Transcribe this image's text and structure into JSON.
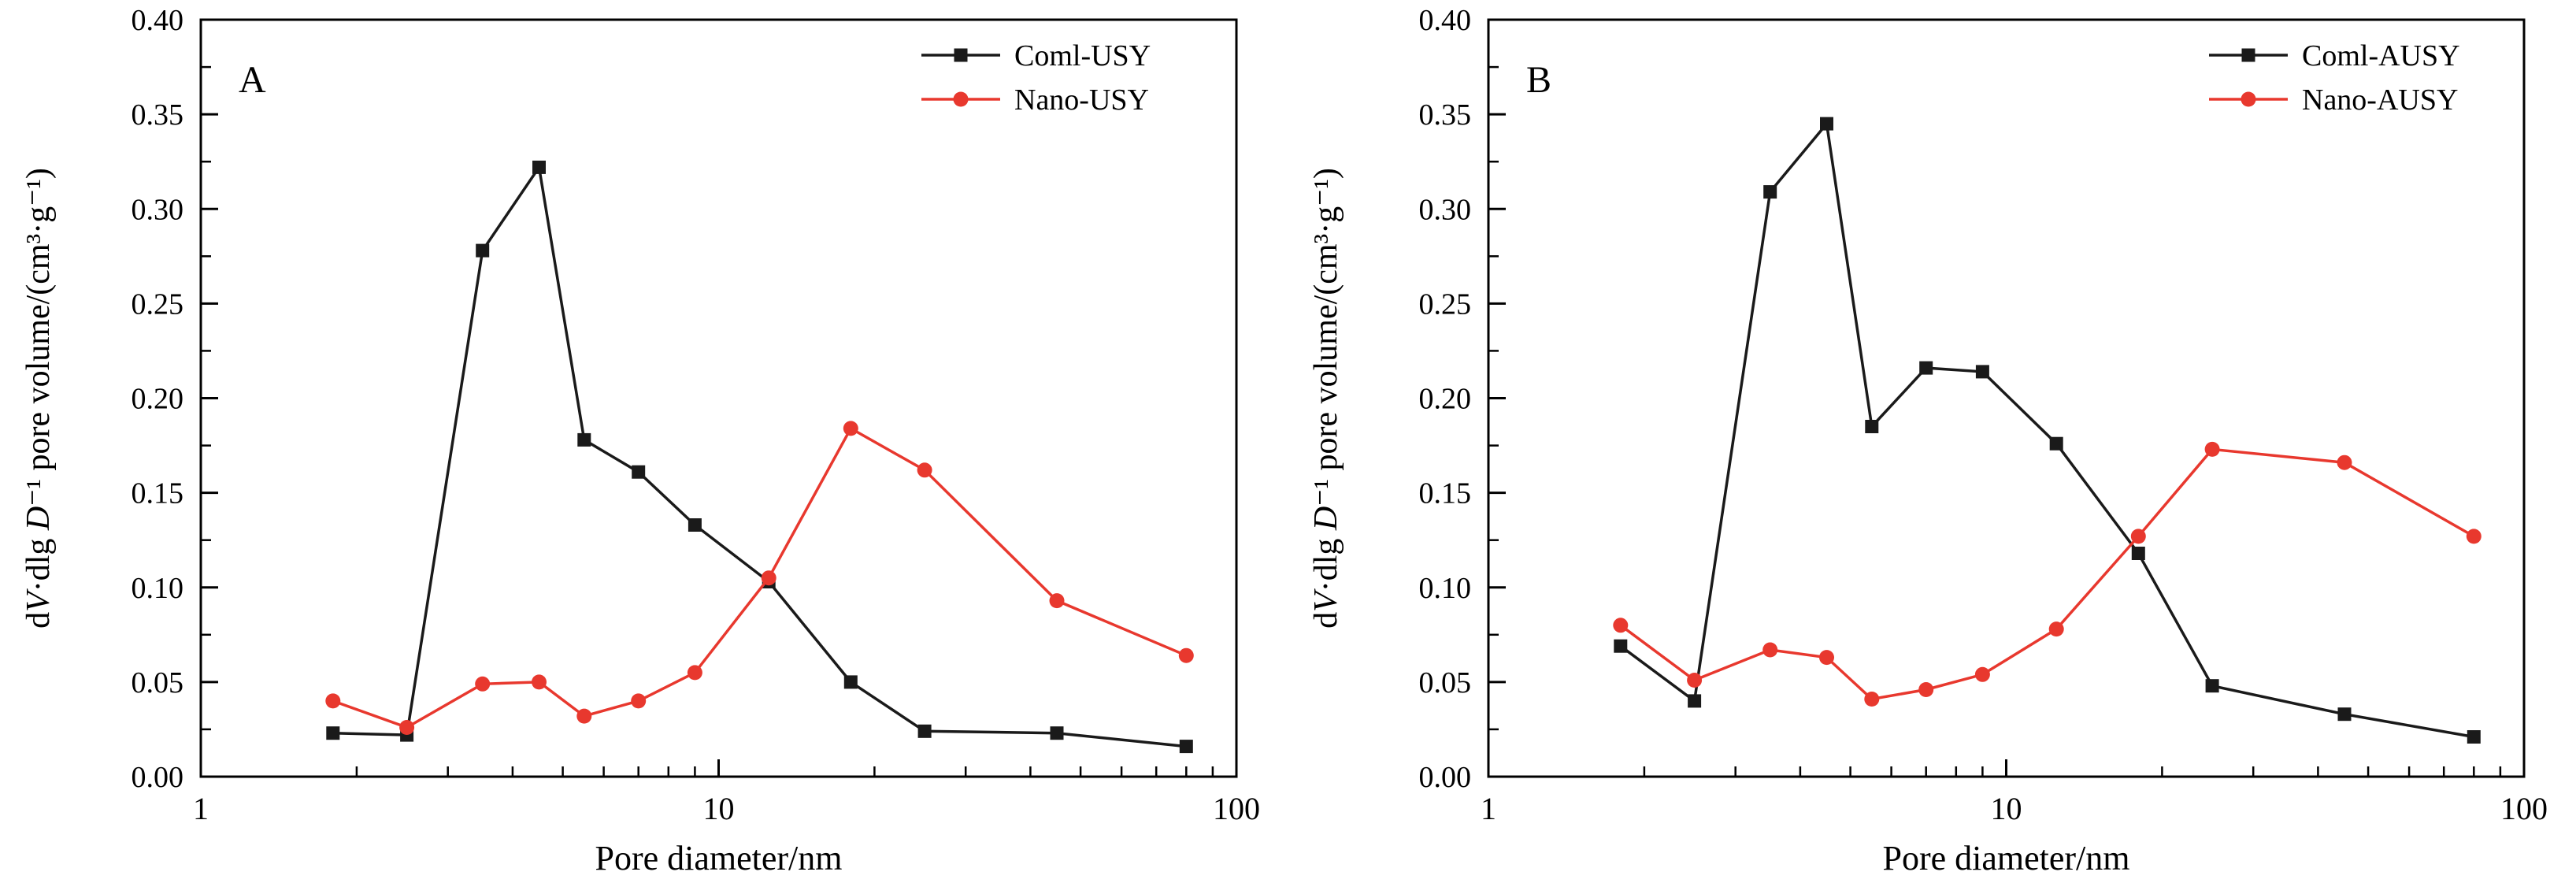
{
  "figure": {
    "background": "#ffffff",
    "text_color": "#000000",
    "frame_color": "#000000"
  },
  "chart_data": [
    {
      "type": "line",
      "panel_label": "A",
      "xlabel": "Pore diameter/nm",
      "ylabel": "dV·dlg D⁻¹ pore volume/(cm³·g⁻¹)",
      "x_scale": "log",
      "xlim": [
        1,
        100
      ],
      "ylim": [
        0.0,
        0.4
      ],
      "y_tick_step": 0.05,
      "x_major_ticks": [
        1,
        10,
        100
      ],
      "grid": false,
      "legend_position": "top-right",
      "x": [
        1.8,
        2.5,
        3.5,
        4.5,
        5.5,
        7,
        9,
        12.5,
        18,
        25,
        45,
        80
      ],
      "series": [
        {
          "name": "Coml-USY",
          "color": "#1a1a1a",
          "marker": "square",
          "values": [
            0.023,
            0.022,
            0.278,
            0.322,
            0.178,
            0.161,
            0.133,
            0.103,
            0.05,
            0.024,
            0.023,
            0.016
          ]
        },
        {
          "name": "Nano-USY",
          "color": "#e8382e",
          "marker": "circle",
          "values": [
            0.04,
            0.026,
            0.049,
            0.05,
            0.032,
            0.04,
            0.055,
            0.105,
            0.184,
            0.162,
            0.093,
            0.064
          ]
        }
      ]
    },
    {
      "type": "line",
      "panel_label": "B",
      "xlabel": "Pore diameter/nm",
      "ylabel": "dV·dlg D⁻¹ pore volume/(cm³·g⁻¹)",
      "x_scale": "log",
      "xlim": [
        1,
        100
      ],
      "ylim": [
        0.0,
        0.4
      ],
      "y_tick_step": 0.05,
      "x_major_ticks": [
        1,
        10,
        100
      ],
      "grid": false,
      "legend_position": "top-right",
      "x": [
        1.8,
        2.5,
        3.5,
        4.5,
        5.5,
        7,
        9,
        12.5,
        18,
        25,
        45,
        80
      ],
      "series": [
        {
          "name": "Coml-AUSY",
          "color": "#1a1a1a",
          "marker": "square",
          "values": [
            0.069,
            0.04,
            0.309,
            0.345,
            0.185,
            0.216,
            0.214,
            0.176,
            0.118,
            0.048,
            0.033,
            0.021
          ]
        },
        {
          "name": "Nano-AUSY",
          "color": "#e8382e",
          "marker": "circle",
          "values": [
            0.08,
            0.051,
            0.067,
            0.063,
            0.041,
            0.046,
            0.054,
            0.078,
            0.127,
            0.173,
            0.166,
            0.127
          ]
        }
      ]
    }
  ]
}
